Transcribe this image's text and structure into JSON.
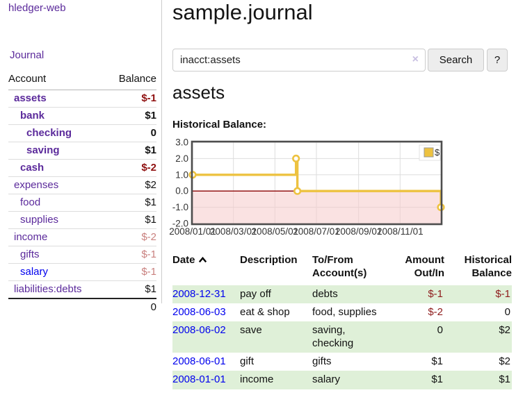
{
  "app": {
    "brand": "hledger-web",
    "nav_journal": "Journal"
  },
  "sidebar": {
    "header_account": "Account",
    "header_balance": "Balance",
    "accounts": [
      {
        "name": "assets",
        "indent": "lv1",
        "link_style": "bold",
        "balance": "$-1",
        "bal_style": "bold neg-strong"
      },
      {
        "name": "bank",
        "indent": "lv2",
        "link_style": "bold",
        "balance": "$1",
        "bal_style": "bold"
      },
      {
        "name": "checking",
        "indent": "lv3",
        "link_style": "bold",
        "balance": "0",
        "bal_style": "bold"
      },
      {
        "name": "saving",
        "indent": "lv3",
        "link_style": "bold",
        "balance": "$1",
        "bal_style": "bold"
      },
      {
        "name": "cash",
        "indent": "lv2",
        "link_style": "bold",
        "balance": "$-2",
        "bal_style": "bold neg-strong"
      },
      {
        "name": "expenses",
        "indent": "lv1",
        "link_style": "",
        "balance": "$2",
        "bal_style": ""
      },
      {
        "name": "food",
        "indent": "lv2",
        "link_style": "",
        "balance": "$1",
        "bal_style": ""
      },
      {
        "name": "supplies",
        "indent": "lv2",
        "link_style": "",
        "balance": "$1",
        "bal_style": ""
      },
      {
        "name": "income",
        "indent": "lv1",
        "link_style": "",
        "balance": "$-2",
        "bal_style": "neg-soft"
      },
      {
        "name": "gifts",
        "indent": "lv2",
        "link_style": "",
        "balance": "$-1",
        "bal_style": "neg-soft"
      },
      {
        "name": "salary",
        "indent": "lv2",
        "link_style": "blue",
        "balance": "$-1",
        "bal_style": "neg-soft"
      },
      {
        "name": "liabilities:debts",
        "indent": "lv1",
        "link_style": "",
        "balance": "$1",
        "bal_style": ""
      }
    ],
    "total": "0"
  },
  "main": {
    "title": "sample.journal",
    "search": {
      "value": "inacct:assets",
      "clear_icon": "×",
      "button_label": "Search",
      "help_label": "?"
    },
    "account_heading": "assets",
    "chart_label": "Historical Balance:"
  },
  "chart_data": {
    "type": "line",
    "title": "Historical Balance",
    "legend": "$",
    "legend_position": "top-right",
    "grid": true,
    "x_range": [
      "2008-01-01",
      "2008-12-31"
    ],
    "y_range": [
      -2,
      3
    ],
    "y_ticks": [
      "3.0",
      "2.0",
      "1.0",
      "0.0",
      "-1.0",
      "-2.0"
    ],
    "x_ticks": [
      {
        "date": "2008-01-01",
        "label": "2008/01/01"
      },
      {
        "date": "2008-03-01",
        "label": "2008/03/01"
      },
      {
        "date": "2008-05-01",
        "label": "2008/05/01"
      },
      {
        "date": "2008-07-01",
        "label": "2008/07/01"
      },
      {
        "date": "2008-09-01",
        "label": "2008/09/01"
      },
      {
        "date": "2008-11-01",
        "label": "2008/11/01"
      }
    ],
    "series": [
      {
        "name": "$",
        "color": "#edc240",
        "step": true,
        "points": [
          {
            "date": "2008-01-01",
            "value": 1
          },
          {
            "date": "2008-06-01",
            "value": 2
          },
          {
            "date": "2008-06-03",
            "value": 0
          },
          {
            "date": "2008-12-31",
            "value": -1
          }
        ]
      }
    ],
    "grid_color": "#dddddd",
    "zero_line_color": "#8b0000",
    "negative_region_color": "#f6caca",
    "border_color": "#4d4d4d"
  },
  "register": {
    "headers": {
      "date": "Date",
      "description": "Description",
      "accounts": "To/From Account(s)",
      "amount": "Amount Out/In",
      "balance": "Historical Balance"
    },
    "rows": [
      {
        "date": "2008-12-31",
        "description": "pay off",
        "accounts": "debts",
        "amount": "$-1",
        "amount_style": "neg",
        "balance": "$-1",
        "balance_style": "neg"
      },
      {
        "date": "2008-06-03",
        "description": "eat & shop",
        "accounts": "food, supplies",
        "amount": "$-2",
        "amount_style": "neg",
        "balance": "0",
        "balance_style": ""
      },
      {
        "date": "2008-06-02",
        "description": "save",
        "accounts": "saving, checking",
        "amount": "0",
        "amount_style": "",
        "balance": "$2",
        "balance_style": ""
      },
      {
        "date": "2008-06-01",
        "description": "gift",
        "accounts": "gifts",
        "amount": "$1",
        "amount_style": "",
        "balance": "$2",
        "balance_style": ""
      },
      {
        "date": "2008-01-01",
        "description": "income",
        "accounts": "salary",
        "amount": "$1",
        "amount_style": "",
        "balance": "$1",
        "balance_style": ""
      }
    ]
  }
}
